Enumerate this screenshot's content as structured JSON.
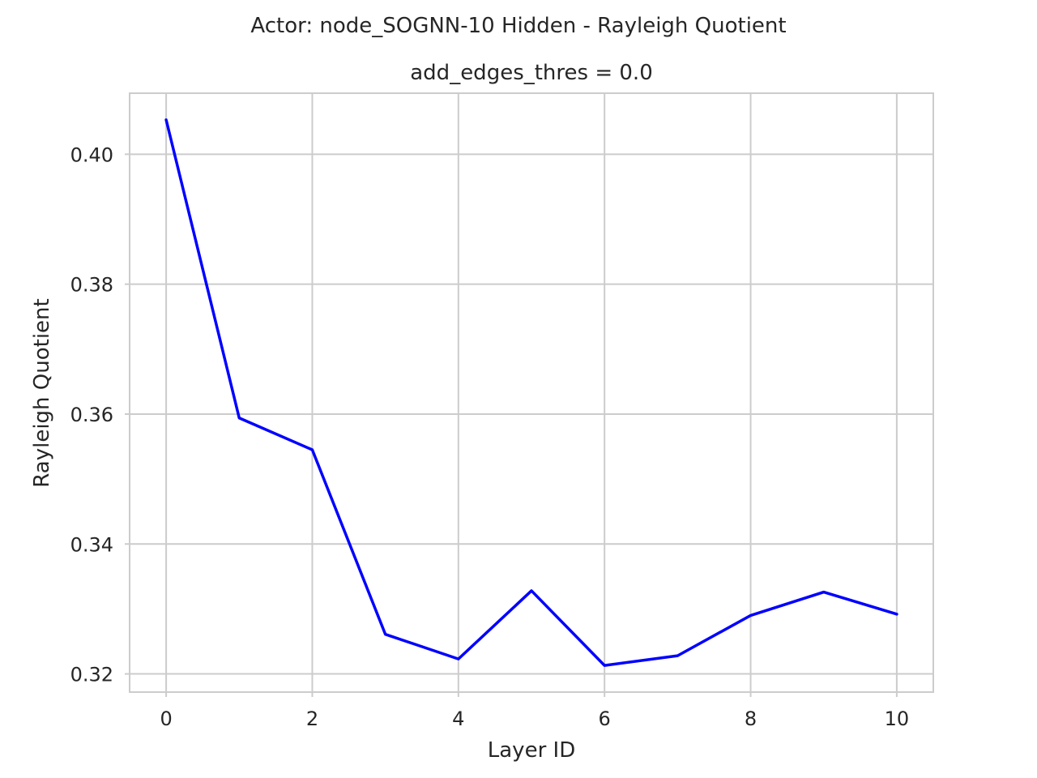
{
  "chart_data": {
    "type": "line",
    "suptitle": "Actor: node_SOGNN-10 Hidden - Rayleigh Quotient",
    "title": "add_edges_thres = 0.0",
    "xlabel": "Layer ID",
    "ylabel": "Rayleigh Quotient",
    "x": [
      0,
      1,
      2,
      3,
      4,
      5,
      6,
      7,
      8,
      9,
      10
    ],
    "series": [
      {
        "values": [
          0.4053,
          0.3594,
          0.3545,
          0.3261,
          0.3223,
          0.3328,
          0.3213,
          0.3228,
          0.329,
          0.3326,
          0.3292
        ],
        "color": "#0000ff"
      }
    ],
    "xlim": [
      -0.5,
      10.5
    ],
    "ylim": [
      0.3172,
      0.4094
    ],
    "xticks": [
      0,
      2,
      4,
      6,
      8,
      10
    ],
    "xtick_labels": [
      "0",
      "2",
      "4",
      "6",
      "8",
      "10"
    ],
    "yticks": [
      0.32,
      0.34,
      0.36,
      0.38,
      0.4
    ],
    "ytick_labels": [
      "0.32",
      "0.34",
      "0.36",
      "0.38",
      "0.40"
    ],
    "grid": true,
    "legend": "none"
  }
}
